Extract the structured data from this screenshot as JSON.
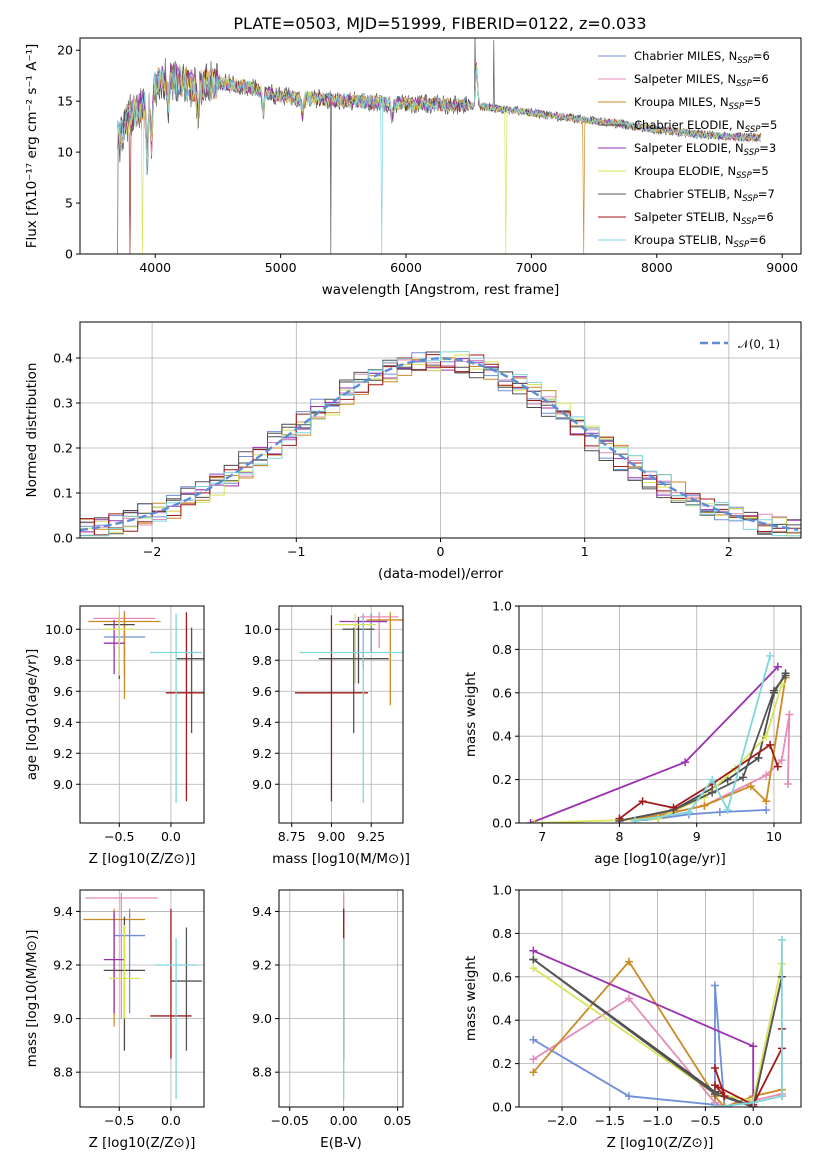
{
  "figure": {
    "title": "PLATE=0503, MJD=51999, FIBERID=0122, z=0.033"
  },
  "models": [
    {
      "name": "Chabrier MILES",
      "nssp": "6",
      "color": "#6f8fd8"
    },
    {
      "name": "Salpeter MILES",
      "nssp": "6",
      "color": "#e58bb8"
    },
    {
      "name": "Kroupa MILES",
      "nssp": "5",
      "color": "#cc8a24"
    },
    {
      "name": "Chabrier ELODIE",
      "nssp": "5",
      "color": "#4a4a4a"
    },
    {
      "name": "Salpeter ELODIE",
      "nssp": "3",
      "color": "#9b30b0"
    },
    {
      "name": "Kroupa ELODIE",
      "nssp": "5",
      "color": "#d9e35a"
    },
    {
      "name": "Chabrier STELIB",
      "nssp": "7",
      "color": "#555555"
    },
    {
      "name": "Salpeter STELIB",
      "nssp": "6",
      "color": "#a01a1a"
    },
    {
      "name": "Kroupa STELIB",
      "nssp": "6",
      "color": "#7fd6dc"
    }
  ],
  "chart_data": [
    {
      "id": "spectrum",
      "type": "line",
      "xlabel": "wavelength [Angstrom, rest frame]",
      "ylabel": "Flux [fλ10⁻¹⁷ erg cm⁻² s⁻¹ A⁻¹]",
      "xlim": [
        3400,
        9150
      ],
      "ylim": [
        0,
        21.2
      ],
      "xticks": [
        4000,
        5000,
        6000,
        7000,
        8000,
        9000
      ],
      "yticks": [
        0,
        5,
        10,
        15,
        20
      ],
      "legend": "top-right",
      "grid": false,
      "continuum": {
        "x": [
          3700,
          3800,
          3900,
          4000,
          4100,
          4200,
          4300,
          4500,
          4700,
          5000,
          5300,
          5600,
          5900,
          6200,
          6500,
          6800,
          7100,
          7400,
          7700,
          8000,
          8300,
          8600,
          8800
        ],
        "y": [
          11.5,
          13.5,
          14.5,
          16.5,
          17.5,
          17.0,
          16.5,
          16.8,
          16.5,
          15.5,
          15.2,
          15.0,
          14.8,
          14.7,
          14.6,
          14.2,
          13.7,
          13.2,
          12.8,
          12.2,
          11.8,
          11.5,
          11.4
        ]
      }
    },
    {
      "id": "residuals",
      "type": "line",
      "xlabel": "(data-model)/error",
      "ylabel": "Normed distribution",
      "xlim": [
        -2.5,
        2.5
      ],
      "ylim": [
        0,
        0.48
      ],
      "xticks": [
        -2,
        -1,
        0,
        1,
        2
      ],
      "yticks": [
        0.0,
        0.1,
        0.2,
        0.3,
        0.4
      ],
      "legend": "top-right",
      "legend_label": "𝒩(0, 1)",
      "reference_color": "#5b8ed6",
      "grid": true
    },
    {
      "id": "age_vs_Z",
      "type": "scatter",
      "xlabel": "Z [log10(Z/Z⊙)]",
      "ylabel": "age  [log10(age/yr)]",
      "xlim": [
        -0.88,
        0.32
      ],
      "ylim": [
        8.75,
        10.15
      ],
      "xticks": [
        -0.5,
        0.0
      ],
      "yticks": [
        9.0,
        9.2,
        9.4,
        9.6,
        9.8,
        10.0
      ],
      "grid": true,
      "points": [
        {
          "x": -0.45,
          "y": 9.95,
          "xerr": 0.2,
          "yerr_lo": 0.25,
          "yerr_hi": 0.13
        },
        {
          "x": -0.45,
          "y": 10.07,
          "xerr": 0.3,
          "yerr_lo": 0.25,
          "yerr_hi": 0.05
        },
        {
          "x": -0.45,
          "y": 10.05,
          "xerr": 0.35,
          "yerr_lo": 0.5,
          "yerr_hi": 0.06
        },
        {
          "x": -0.5,
          "y": 10.03,
          "xerr": 0.15,
          "yerr_lo": 0.35,
          "yerr_hi": 0.07
        },
        {
          "x": -0.55,
          "y": 9.91,
          "xerr": 0.1,
          "yerr_lo": 0.2,
          "yerr_hi": 0.15
        },
        {
          "x": -0.5,
          "y": 10.0,
          "xerr": 0.15,
          "yerr_lo": 0.3,
          "yerr_hi": 0.1
        },
        {
          "x": 0.2,
          "y": 9.81,
          "xerr": 0.15,
          "yerr_lo": 0.48,
          "yerr_hi": 0.2
        },
        {
          "x": 0.15,
          "y": 9.59,
          "xerr": 0.2,
          "yerr_lo": 0.7,
          "yerr_hi": 0.52
        },
        {
          "x": 0.05,
          "y": 9.85,
          "xerr": 0.25,
          "yerr_lo": 0.97,
          "yerr_hi": 0.25
        }
      ]
    },
    {
      "id": "age_vs_mass",
      "type": "scatter",
      "xlabel": "mass [log10(M/M⊙)]",
      "ylabel": "",
      "xlim": [
        8.67,
        9.45
      ],
      "ylim": [
        8.75,
        10.15
      ],
      "xticks": [
        8.75,
        9.0,
        9.25
      ],
      "yticks": [
        9.0,
        9.2,
        9.4,
        9.6,
        9.8,
        10.0
      ],
      "grid": true,
      "points": [
        {
          "x": 9.25,
          "y": 10.05,
          "xerr": 0.1,
          "yerr_lo": 0.2,
          "yerr_hi": 0.05
        },
        {
          "x": 9.3,
          "y": 10.08,
          "xerr": 0.12,
          "yerr_lo": 0.2,
          "yerr_hi": 0.03
        },
        {
          "x": 9.37,
          "y": 10.06,
          "xerr": 0.15,
          "yerr_lo": 0.55,
          "yerr_hi": 0.05
        },
        {
          "x": 9.17,
          "y": 10.0,
          "xerr": 0.1,
          "yerr_lo": 0.35,
          "yerr_hi": 0.08
        },
        {
          "x": 9.2,
          "y": 10.05,
          "xerr": 0.15,
          "yerr_lo": 0.3,
          "yerr_hi": 0.05
        },
        {
          "x": 9.15,
          "y": 10.03,
          "xerr": 0.13,
          "yerr_lo": 0.38,
          "yerr_hi": 0.07
        },
        {
          "x": 9.14,
          "y": 9.81,
          "xerr": 0.22,
          "yerr_lo": 0.48,
          "yerr_hi": 0.2
        },
        {
          "x": 9.0,
          "y": 9.59,
          "xerr": 0.23,
          "yerr_lo": 0.7,
          "yerr_hi": 0.5
        },
        {
          "x": 9.2,
          "y": 9.85,
          "xerr": 0.4,
          "yerr_lo": 0.97,
          "yerr_hi": 0.25
        }
      ]
    },
    {
      "id": "weight_vs_age",
      "type": "line",
      "xlabel": "age  [log10(age/yr)]",
      "ylabel": "mass weight",
      "xlim": [
        6.7,
        10.35
      ],
      "ylim": [
        0,
        1.0
      ],
      "xticks": [
        7,
        8,
        9,
        10
      ],
      "yticks": [
        0.0,
        0.2,
        0.4,
        0.6,
        0.8,
        1.0
      ],
      "grid": true,
      "series": [
        {
          "x": [
            8.2,
            8.5,
            8.9,
            9.3,
            9.9
          ],
          "y": [
            0.01,
            0.02,
            0.04,
            0.05,
            0.06
          ]
        },
        {
          "x": [
            8.0,
            8.7,
            9.1,
            9.9,
            10.1,
            10.2,
            10.18
          ],
          "y": [
            0.01,
            0.05,
            0.08,
            0.22,
            0.29,
            0.5,
            0.18
          ]
        },
        {
          "x": [
            8.0,
            8.6,
            9.1,
            9.7,
            9.9,
            10.15
          ],
          "y": [
            0.01,
            0.04,
            0.08,
            0.17,
            0.1,
            0.67
          ]
        },
        {
          "x": [
            8.0,
            8.7,
            9.4,
            9.8,
            10.0,
            10.15
          ],
          "y": [
            0.01,
            0.06,
            0.2,
            0.3,
            0.6,
            0.69
          ]
        },
        {
          "x": [
            6.85,
            8.85,
            10.05
          ],
          "y": [
            0.0,
            0.28,
            0.72
          ]
        },
        {
          "x": [
            6.9,
            8.5,
            9.1,
            9.5,
            9.9,
            10.1
          ],
          "y": [
            0.0,
            0.02,
            0.12,
            0.25,
            0.4,
            0.64
          ]
        },
        {
          "x": [
            8.0,
            8.7,
            9.2,
            9.6,
            10.0,
            10.15
          ],
          "y": [
            0.01,
            0.06,
            0.14,
            0.21,
            0.61,
            0.68
          ]
        },
        {
          "x": [
            8.0,
            8.3,
            8.7,
            9.2,
            9.95,
            10.05
          ],
          "y": [
            0.02,
            0.1,
            0.07,
            0.18,
            0.36,
            0.26
          ]
        },
        {
          "x": [
            8.2,
            8.9,
            9.2,
            9.4,
            9.95
          ],
          "y": [
            0.01,
            0.05,
            0.2,
            0.06,
            0.77
          ]
        }
      ]
    },
    {
      "id": "mass_vs_Z",
      "type": "scatter",
      "xlabel": "Z [log10(Z/Z⊙)]",
      "ylabel": "mass [log10(M/M⊙)]",
      "xlim": [
        -0.88,
        0.32
      ],
      "ylim": [
        8.67,
        9.48
      ],
      "xticks": [
        -0.5,
        0.0
      ],
      "yticks": [
        8.8,
        9.0,
        9.2,
        9.4
      ],
      "grid": true,
      "points": [
        {
          "x": -0.4,
          "y": 9.31,
          "xerr": 0.15,
          "yerr_lo": 0.29,
          "yerr_hi": 0.1
        },
        {
          "x": -0.48,
          "y": 9.45,
          "xerr": 0.35,
          "yerr_lo": 0.45,
          "yerr_hi": 0.02
        },
        {
          "x": -0.55,
          "y": 9.37,
          "xerr": 0.3,
          "yerr_lo": 0.4,
          "yerr_hi": 0.04
        },
        {
          "x": -0.45,
          "y": 9.18,
          "xerr": 0.2,
          "yerr_lo": 0.3,
          "yerr_hi": 0.2
        },
        {
          "x": -0.55,
          "y": 9.22,
          "xerr": 0.1,
          "yerr_lo": 0.2,
          "yerr_hi": 0.18
        },
        {
          "x": -0.45,
          "y": 9.15,
          "xerr": 0.15,
          "yerr_lo": 0.15,
          "yerr_hi": 0.2
        },
        {
          "x": 0.15,
          "y": 9.14,
          "xerr": 0.15,
          "yerr_lo": 0.26,
          "yerr_hi": 0.2
        },
        {
          "x": 0.0,
          "y": 9.01,
          "xerr": 0.2,
          "yerr_lo": 0.16,
          "yerr_hi": 0.4
        },
        {
          "x": 0.05,
          "y": 9.2,
          "xerr": 0.2,
          "yerr_lo": 0.5,
          "yerr_hi": 0.1
        }
      ]
    },
    {
      "id": "mass_vs_ebv",
      "type": "scatter",
      "xlabel": "E(B-V)",
      "ylabel": "",
      "xlim": [
        -0.06,
        0.055
      ],
      "ylim": [
        8.67,
        9.48
      ],
      "xticks": [
        -0.05,
        0.0,
        0.05
      ],
      "yticks": [
        8.8,
        9.0,
        9.2,
        9.4
      ],
      "grid": true,
      "points": [
        {
          "x": 0.0,
          "y": 9.31,
          "xerr": 0.0,
          "yerr_lo": 0.29,
          "yerr_hi": 0.1
        },
        {
          "x": 0.0,
          "y": 9.45,
          "xerr": 0.0,
          "yerr_lo": 0.45,
          "yerr_hi": 0.02
        },
        {
          "x": 0.0,
          "y": 9.37,
          "xerr": 0.0,
          "yerr_lo": 0.4,
          "yerr_hi": 0.04
        },
        {
          "x": 0.0,
          "y": 9.18,
          "xerr": 0.0,
          "yerr_lo": 0.3,
          "yerr_hi": 0.2
        },
        {
          "x": 0.0,
          "y": 9.22,
          "xerr": 0.0,
          "yerr_lo": 0.2,
          "yerr_hi": 0.18
        },
        {
          "x": 0.0,
          "y": 9.15,
          "xerr": 0.0,
          "yerr_lo": 0.15,
          "yerr_hi": 0.2
        },
        {
          "x": 0.0,
          "y": 9.14,
          "xerr": 0.0,
          "yerr_lo": 0.26,
          "yerr_hi": 0.2
        },
        {
          "x": 0.0,
          "y": 9.01,
          "xerr": 0.0,
          "yerr_lo": 0.16,
          "yerr_hi": 0.4
        },
        {
          "x": 0.0,
          "y": 9.2,
          "xerr": 0.0,
          "yerr_lo": 0.5,
          "yerr_hi": 0.1
        }
      ]
    },
    {
      "id": "weight_vs_Z",
      "type": "line",
      "xlabel": "Z [log10(Z/Z⊙)]",
      "ylabel": "mass weight",
      "xlim": [
        -2.45,
        0.5
      ],
      "ylim": [
        0,
        1.0
      ],
      "xticks": [
        -2.0,
        -1.5,
        -1.0,
        -0.5,
        0.0
      ],
      "yticks": [
        0.0,
        0.2,
        0.4,
        0.6,
        0.8,
        1.0
      ],
      "grid": true,
      "series": [
        {
          "x": [
            -2.3,
            -1.3,
            -0.4,
            -0.4,
            -0.3,
            0.0
          ],
          "y": [
            0.31,
            0.05,
            0.01,
            0.56,
            0.0,
            0.03
          ]
        },
        {
          "x": [
            -2.3,
            -1.3,
            -0.4,
            -0.3,
            0.0,
            0.3
          ],
          "y": [
            0.22,
            0.5,
            0.02,
            0.0,
            0.03,
            0.06
          ]
        },
        {
          "x": [
            -2.3,
            -1.3,
            -0.4,
            -0.3,
            0.0,
            0.3,
            0.3
          ],
          "y": [
            0.16,
            0.67,
            0.05,
            0.0,
            0.05,
            0.08,
            0.05
          ]
        },
        {
          "x": [
            -2.3,
            -0.4,
            0.0,
            0.3
          ],
          "y": [
            0.68,
            0.07,
            0.0,
            0.6
          ]
        },
        {
          "x": [
            -2.3,
            0.0,
            0.0
          ],
          "y": [
            0.72,
            0.28,
            0.0
          ]
        },
        {
          "x": [
            -2.3,
            -0.4,
            0.0,
            0.3
          ],
          "y": [
            0.64,
            0.06,
            0.03,
            0.66
          ]
        },
        {
          "x": [
            -2.3,
            -0.4,
            0.0,
            0.3
          ],
          "y": [
            0.68,
            0.06,
            0.0,
            0.6
          ]
        },
        {
          "x": [
            -0.4,
            -0.3,
            -0.4,
            0.0,
            0.3,
            0.3
          ],
          "y": [
            0.18,
            0.05,
            0.1,
            0.01,
            0.27,
            0.36
          ]
        },
        {
          "x": [
            -0.4,
            0.0,
            0.3,
            0.3
          ],
          "y": [
            0.0,
            0.02,
            0.05,
            0.77
          ]
        }
      ]
    }
  ]
}
